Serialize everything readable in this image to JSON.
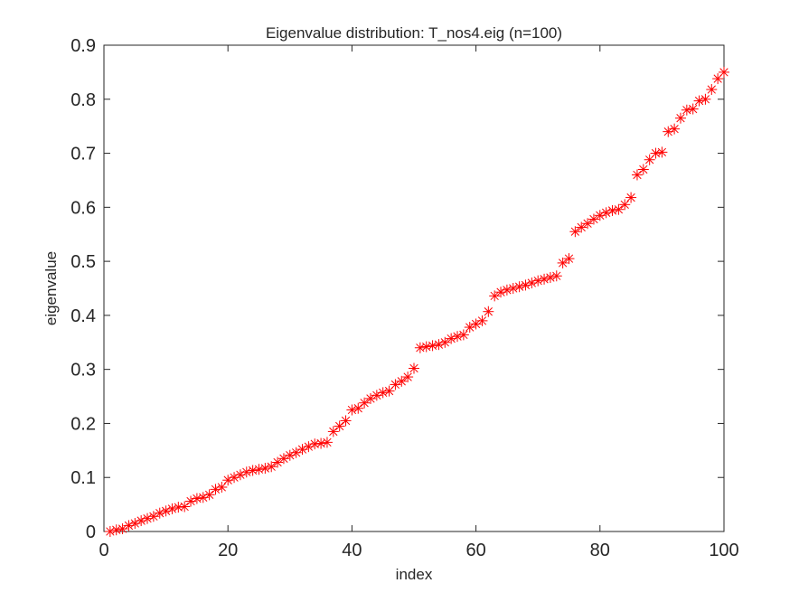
{
  "chart_data": {
    "type": "scatter",
    "title": "Eigenvalue distribution: T_nos4.eig (n=100)",
    "xlabel": "index",
    "ylabel": "eigenvalue",
    "xlim": [
      0,
      100
    ],
    "ylim": [
      0,
      0.9
    ],
    "xticks": [
      "0",
      "20",
      "40",
      "60",
      "80",
      "100"
    ],
    "yticks": [
      "0",
      "0.1",
      "0.2",
      "0.3",
      "0.4",
      "0.5",
      "0.6",
      "0.7",
      "0.8",
      "0.9"
    ],
    "grid": false,
    "marker": "asterisk",
    "marker_color": "#ff0000",
    "series": [
      {
        "x": [
          1,
          2,
          3,
          4,
          5,
          6,
          7,
          8,
          9,
          10,
          11,
          12,
          13,
          14,
          15,
          16,
          17,
          18,
          19,
          20,
          21,
          22,
          23,
          24,
          25,
          26,
          27,
          28,
          29,
          30,
          31,
          32,
          33,
          34,
          35,
          36,
          37,
          38,
          39,
          40,
          41,
          42,
          43,
          44,
          45,
          46,
          47,
          48,
          49,
          50,
          51,
          52,
          53,
          54,
          55,
          56,
          57,
          58,
          59,
          60,
          61,
          62,
          63,
          64,
          65,
          66,
          67,
          68,
          69,
          70,
          71,
          72,
          73,
          74,
          75,
          76,
          77,
          78,
          79,
          80,
          81,
          82,
          83,
          84,
          85,
          86,
          87,
          88,
          89,
          90,
          91,
          92,
          93,
          94,
          95,
          96,
          97,
          98,
          99,
          100
        ],
        "values": [
          0.0,
          0.003,
          0.005,
          0.011,
          0.015,
          0.02,
          0.024,
          0.028,
          0.034,
          0.038,
          0.042,
          0.045,
          0.046,
          0.056,
          0.061,
          0.063,
          0.068,
          0.078,
          0.082,
          0.095,
          0.1,
          0.105,
          0.11,
          0.113,
          0.115,
          0.117,
          0.12,
          0.128,
          0.135,
          0.141,
          0.146,
          0.152,
          0.157,
          0.162,
          0.163,
          0.165,
          0.185,
          0.195,
          0.205,
          0.225,
          0.228,
          0.238,
          0.246,
          0.252,
          0.257,
          0.26,
          0.272,
          0.278,
          0.286,
          0.302,
          0.34,
          0.342,
          0.344,
          0.346,
          0.35,
          0.357,
          0.361,
          0.364,
          0.378,
          0.384,
          0.39,
          0.407,
          0.436,
          0.443,
          0.447,
          0.45,
          0.453,
          0.456,
          0.46,
          0.464,
          0.467,
          0.47,
          0.473,
          0.497,
          0.505,
          0.555,
          0.563,
          0.57,
          0.578,
          0.585,
          0.59,
          0.594,
          0.596,
          0.605,
          0.618,
          0.66,
          0.67,
          0.688,
          0.7,
          0.702,
          0.74,
          0.745,
          0.765,
          0.78,
          0.782,
          0.797,
          0.8,
          0.818,
          0.838,
          0.85
        ]
      }
    ]
  }
}
